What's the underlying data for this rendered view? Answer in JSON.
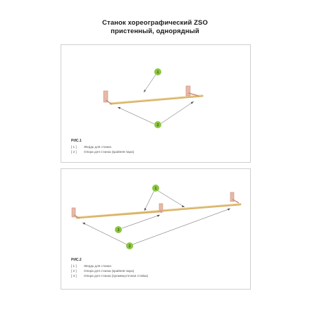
{
  "header": {
    "title_line1": "Станок хореографический ZSO",
    "title_line2": "пристенный, однорядный"
  },
  "figure1": {
    "caption": "РИС.1",
    "callouts": [
      "1",
      "2"
    ],
    "legend": [
      {
        "num": "[ 1 ]",
        "label": "Жердь для станка"
      },
      {
        "num": "[ 2 ]",
        "label": "Опора для станка (крайняя пара)"
      }
    ]
  },
  "figure2": {
    "caption": "РИС.2",
    "callouts": [
      "1",
      "3",
      "2"
    ],
    "legend": [
      {
        "num": "[ 1 ]",
        "label": "Жердь для станка"
      },
      {
        "num": "[ 2 ]",
        "label": "Опора для станка (крайняя пара)"
      },
      {
        "num": "[ 3 ]",
        "label": "Опора для станка (промежуточная стойка)"
      }
    ]
  },
  "colors": {
    "callout_fill": "#8cc63f",
    "bar": "#d9b36a",
    "bracket": "#e8b9a8",
    "border": "#cfcfcf"
  }
}
